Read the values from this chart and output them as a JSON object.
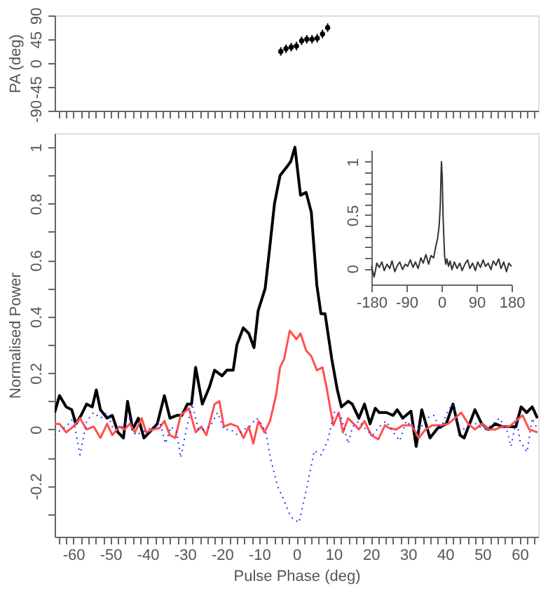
{
  "chart_data": [
    {
      "type": "scatter",
      "ylabel": "PA (deg)",
      "marker": "circle",
      "color": "#000000",
      "tick_labels": "y",
      "x": [
        -4.2,
        -2.8,
        -1.4,
        0,
        1.4,
        2.8,
        4.2,
        5.6,
        7.0,
        8.4
      ],
      "values": [
        22,
        27,
        30,
        32,
        42,
        45,
        45,
        47,
        55,
        67
      ],
      "errors": [
        8,
        8,
        8,
        8,
        8,
        8,
        8,
        8,
        8,
        8
      ],
      "xlim": [
        -65,
        65
      ],
      "ylim": [
        -90,
        90
      ],
      "yticks": [
        -90,
        -45,
        0,
        45,
        90
      ],
      "xticks": [
        {
          "value": -64,
          "label": null
        },
        {
          "value": -62,
          "label": null
        },
        -60,
        {
          "value": -58,
          "label": null
        },
        {
          "value": -56,
          "label": null
        },
        {
          "value": -54,
          "label": null
        },
        {
          "value": -52,
          "label": null
        },
        -50,
        {
          "value": -48,
          "label": null
        },
        {
          "value": -46,
          "label": null
        },
        {
          "value": -44,
          "label": null
        },
        {
          "value": -42,
          "label": null
        },
        -40,
        {
          "value": -38,
          "label": null
        },
        {
          "value": -36,
          "label": null
        },
        {
          "value": -34,
          "label": null
        },
        {
          "value": -32,
          "label": null
        },
        -30,
        {
          "value": -28,
          "label": null
        },
        {
          "value": -26,
          "label": null
        },
        {
          "value": -24,
          "label": null
        },
        {
          "value": -22,
          "label": null
        },
        -20,
        {
          "value": -18,
          "label": null
        },
        {
          "value": -16,
          "label": null
        },
        {
          "value": -14,
          "label": null
        },
        {
          "value": -12,
          "label": null
        },
        -10,
        {
          "value": -8,
          "label": null
        },
        {
          "value": -6,
          "label": null
        },
        {
          "value": -4,
          "label": null
        },
        {
          "value": -2,
          "label": null
        },
        0,
        {
          "value": 2,
          "label": null
        },
        {
          "value": 4,
          "label": null
        },
        {
          "value": 6,
          "label": null
        },
        {
          "value": 8,
          "label": null
        },
        10,
        {
          "value": 12,
          "label": null
        },
        {
          "value": 14,
          "label": null
        },
        {
          "value": 16,
          "label": null
        },
        {
          "value": 18,
          "label": null
        },
        20,
        {
          "value": 22,
          "label": null
        },
        {
          "value": 24,
          "label": null
        },
        {
          "value": 26,
          "label": null
        },
        {
          "value": 28,
          "label": null
        },
        30,
        {
          "value": 32,
          "label": null
        },
        {
          "value": 34,
          "label": null
        },
        {
          "value": 36,
          "label": null
        },
        {
          "value": 38,
          "label": null
        },
        40,
        {
          "value": 42,
          "label": null
        },
        {
          "value": 44,
          "label": null
        },
        {
          "value": 46,
          "label": null
        },
        {
          "value": 48,
          "label": null
        },
        50,
        {
          "value": 52,
          "label": null
        },
        {
          "value": 54,
          "label": null
        },
        {
          "value": 56,
          "label": null
        },
        {
          "value": 58,
          "label": null
        },
        60,
        {
          "value": 62,
          "label": null
        },
        {
          "value": 64,
          "label": null
        }
      ]
    },
    {
      "type": "line",
      "xlabel": "Pulse Phase (deg)",
      "ylabel": "Normalised Power",
      "xlim": [
        -65,
        65
      ],
      "ylim": [
        -0.38,
        1.05
      ],
      "yticks": [
        {
          "value": -0.3,
          "label": null
        },
        -0.2,
        {
          "value": -0.1,
          "label": null
        },
        0,
        {
          "value": 0.1,
          "label": null
        },
        0.2,
        {
          "value": 0.3,
          "label": null
        },
        0.4,
        {
          "value": 0.5,
          "label": null
        },
        0.6,
        {
          "value": 0.7,
          "label": null
        },
        0.8,
        {
          "value": 0.9,
          "label": null
        },
        1
      ],
      "xticks": [
        {
          "value": -64,
          "label": null
        },
        {
          "value": -62,
          "label": null
        },
        -60,
        {
          "value": -58,
          "label": null
        },
        {
          "value": -56,
          "label": null
        },
        {
          "value": -54,
          "label": null
        },
        {
          "value": -52,
          "label": null
        },
        -50,
        {
          "value": -48,
          "label": null
        },
        {
          "value": -46,
          "label": null
        },
        {
          "value": -44,
          "label": null
        },
        {
          "value": -42,
          "label": null
        },
        -40,
        {
          "value": -38,
          "label": null
        },
        {
          "value": -36,
          "label": null
        },
        {
          "value": -34,
          "label": null
        },
        {
          "value": -32,
          "label": null
        },
        -30,
        {
          "value": -28,
          "label": null
        },
        {
          "value": -26,
          "label": null
        },
        {
          "value": -24,
          "label": null
        },
        {
          "value": -22,
          "label": null
        },
        -20,
        {
          "value": -18,
          "label": null
        },
        {
          "value": -16,
          "label": null
        },
        {
          "value": -14,
          "label": null
        },
        {
          "value": -12,
          "label": null
        },
        -10,
        {
          "value": -8,
          "label": null
        },
        {
          "value": -6,
          "label": null
        },
        {
          "value": -4,
          "label": null
        },
        {
          "value": -2,
          "label": null
        },
        0,
        {
          "value": 2,
          "label": null
        },
        {
          "value": 4,
          "label": null
        },
        {
          "value": 6,
          "label": null
        },
        {
          "value": 8,
          "label": null
        },
        10,
        {
          "value": 12,
          "label": null
        },
        {
          "value": 14,
          "label": null
        },
        {
          "value": 16,
          "label": null
        },
        {
          "value": 18,
          "label": null
        },
        20,
        {
          "value": 22,
          "label": null
        },
        {
          "value": 24,
          "label": null
        },
        {
          "value": 26,
          "label": null
        },
        {
          "value": 28,
          "label": null
        },
        30,
        {
          "value": 32,
          "label": null
        },
        {
          "value": 34,
          "label": null
        },
        {
          "value": 36,
          "label": null
        },
        {
          "value": 38,
          "label": null
        },
        40,
        {
          "value": 42,
          "label": null
        },
        {
          "value": 44,
          "label": null
        },
        {
          "value": 46,
          "label": null
        },
        {
          "value": 48,
          "label": null
        },
        50,
        {
          "value": 52,
          "label": null
        },
        {
          "value": 54,
          "label": null
        },
        {
          "value": 56,
          "label": null
        },
        {
          "value": 58,
          "label": null
        },
        60,
        {
          "value": 62,
          "label": null
        },
        {
          "value": 64,
          "label": null
        }
      ],
      "series": [
        {
          "color": "#000000",
          "line_style": "solid",
          "x": [
            -65,
            -63.7,
            -61.9,
            -60.4,
            -59.3,
            -57.9,
            -56.4,
            -54.9,
            -53.8,
            -52.7,
            -50.9,
            -49.5,
            -48,
            -46.5,
            -45.4,
            -44,
            -42.5,
            -41,
            -38.8,
            -37.4,
            -35.5,
            -34,
            -32.2,
            -30.8,
            -29.3,
            -28.2,
            -27.1,
            -25.3,
            -23.4,
            -22,
            -20,
            -18.7,
            -17,
            -16,
            -14.3,
            -12.8,
            -11.4,
            -10.3,
            -8.4,
            -7.3,
            -5.9,
            -4.4,
            -2.6,
            -1.5,
            -0.4,
            1.1,
            2.6,
            4,
            5.5,
            6.6,
            7.7,
            9.5,
            11,
            12.1,
            13.9,
            15,
            16.8,
            18.3,
            19.8,
            21.2,
            22.3,
            24.2,
            26,
            27.1,
            28.6,
            30.8,
            32.2,
            33.7,
            35.9,
            38,
            40.3,
            42.1,
            44,
            45.1,
            48,
            49.8,
            51.6,
            53.5,
            55.3,
            57.9,
            59,
            60.4,
            61.9,
            63.4,
            64.8
          ],
          "values": [
            0.06,
            0.12,
            0.08,
            0.07,
            0.02,
            0.05,
            0.09,
            0.08,
            0.14,
            0.07,
            0.04,
            0.05,
            -0.01,
            -0.03,
            0.1,
            0.0,
            0.04,
            -0.03,
            0.0,
            0.02,
            0.12,
            0.04,
            0.05,
            0.05,
            0.09,
            0.09,
            0.22,
            0.09,
            0.15,
            0.21,
            0.19,
            0.21,
            0.21,
            0.3,
            0.36,
            0.34,
            0.29,
            0.42,
            0.5,
            0.63,
            0.8,
            0.9,
            0.93,
            0.95,
            1.0,
            0.83,
            0.84,
            0.77,
            0.51,
            0.41,
            0.41,
            0.25,
            0.14,
            0.08,
            0.1,
            0.09,
            0.04,
            0.09,
            0.02,
            0.075,
            0.06,
            0.06,
            0.05,
            0.07,
            0.04,
            0.065,
            -0.06,
            0.07,
            -0.03,
            0.005,
            0.02,
            0.09,
            -0.02,
            -0.03,
            0.07,
            0.02,
            0.0,
            0.02,
            0.01,
            0.01,
            0.01,
            0.08,
            0.06,
            0.08,
            0.04
          ]
        },
        {
          "color": "#ff5050",
          "line_style": "solid",
          "x": [
            -65,
            -63.7,
            -61.9,
            -60,
            -58.2,
            -56.4,
            -54.5,
            -52.7,
            -50.9,
            -49.5,
            -47.6,
            -46.2,
            -44.8,
            -43.4,
            -41.6,
            -40.4,
            -38.6,
            -36.8,
            -35.5,
            -34,
            -32.6,
            -31.1,
            -28.9,
            -27.1,
            -25.6,
            -24.2,
            -22,
            -20.7,
            -19.5,
            -17.7,
            -15.8,
            -14.2,
            -12.8,
            -11.6,
            -10.2,
            -8.6,
            -7.1,
            -5.5,
            -4.4,
            -3.3,
            -1.8,
            0,
            1.1,
            2.6,
            4,
            5.5,
            7,
            8.1,
            9.9,
            11.4,
            12.5,
            13.9,
            15.8,
            16.8,
            18.3,
            20.1,
            22,
            23.8,
            25,
            26.8,
            28.6,
            31,
            32.9,
            34.7,
            36.5,
            39,
            40.8,
            42.6,
            44.3,
            46.2,
            48,
            49.8,
            51.6,
            53.5,
            55.3,
            57.2,
            59,
            60.8,
            62.6,
            64.8
          ],
          "values": [
            0.02,
            0.02,
            -0.01,
            0.01,
            0.04,
            0.0,
            0.01,
            -0.03,
            0.02,
            -0.02,
            0.01,
            0.0,
            0.02,
            -0.01,
            0.04,
            -0.01,
            0.0,
            0.005,
            0.03,
            -0.02,
            -0.03,
            0.05,
            0.075,
            -0.01,
            0.01,
            -0.02,
            0.09,
            0.1,
            0.01,
            0.02,
            0.01,
            -0.03,
            0.01,
            -0.05,
            0.03,
            -0.01,
            0.03,
            0.12,
            0.22,
            0.25,
            0.35,
            0.32,
            0.34,
            0.28,
            0.26,
            0.21,
            0.22,
            0.15,
            0.015,
            0.06,
            -0.01,
            0.04,
            0.015,
            0.0,
            0.03,
            -0.02,
            -0.035,
            0.015,
            0.005,
            0.0,
            0.015,
            0.015,
            -0.03,
            0.0,
            0.015,
            0.015,
            0.02,
            0.04,
            0.06,
            0.02,
            0.0,
            0.02,
            0.0,
            0.0,
            0.01,
            0.01,
            0.03,
            0.05,
            0.0,
            -0.01
          ]
        },
        {
          "color": "#3030ff",
          "line_style": "dotted",
          "x": [
            -65,
            -63.3,
            -61.9,
            -60,
            -58.2,
            -56.4,
            -54.5,
            -52.7,
            -50.9,
            -49.5,
            -47.6,
            -46.2,
            -44.8,
            -43.3,
            -41.6,
            -39.9,
            -38.4,
            -36.8,
            -35.2,
            -33.7,
            -32.2,
            -31.1,
            -29.6,
            -28,
            -26.4,
            -24.9,
            -23.2,
            -21.2,
            -19.5,
            -17.7,
            -15.8,
            -14.2,
            -12.6,
            -10.8,
            -9.9,
            -8.2,
            -7,
            -5.1,
            -3.7,
            -1.5,
            0.7,
            2.9,
            4.8,
            6.6,
            8.4,
            10.3,
            12.1,
            13.9,
            15.1,
            16.8,
            18.7,
            20.5,
            22.3,
            24.1,
            26,
            27.8,
            29.5,
            31,
            33.2,
            35,
            36.9,
            38.7,
            40.5,
            42,
            43.6,
            45.4,
            47.3,
            49.1,
            50.9,
            52.8,
            54.6,
            56.5,
            57.7,
            59.2,
            60.1,
            62,
            63.4,
            64.8
          ],
          "values": [
            -0.02,
            0.0,
            0.01,
            0.04,
            -0.09,
            0.03,
            0.06,
            0.04,
            0.06,
            0.01,
            0.0,
            0.02,
            0.04,
            -0.02,
            -0.01,
            0.0,
            0.01,
            0.03,
            -0.05,
            0.01,
            -0.01,
            -0.1,
            0.0,
            0.09,
            0.0,
            0.0,
            0.01,
            0.06,
            0.0,
            0.0,
            -0.02,
            0.0,
            0.01,
            0.04,
            0.03,
            -0.01,
            -0.1,
            -0.2,
            -0.24,
            -0.31,
            -0.33,
            -0.2,
            -0.075,
            -0.09,
            -0.04,
            0.065,
            0.04,
            -0.05,
            0.01,
            0.03,
            0.0,
            -0.02,
            0.01,
            0.03,
            -0.01,
            -0.04,
            0.03,
            0.01,
            0.0,
            0.04,
            0.05,
            0.0,
            0.06,
            0.09,
            0.01,
            0.0,
            0.03,
            0.01,
            0.0,
            0.02,
            0.04,
            0.0,
            -0.06,
            0.04,
            -0.04,
            -0.08,
            0.04,
            0.0
          ]
        }
      ]
    },
    {
      "type": "line",
      "color": "#333333",
      "xlim": [
        -180,
        180
      ],
      "ylim": [
        -0.15,
        1.11
      ],
      "xticks": [
        -180,
        -90,
        0,
        90,
        180
      ],
      "yticks": [
        0,
        {
          "value": 0.1,
          "label": null
        },
        {
          "value": 0.2,
          "label": null
        },
        {
          "value": 0.3,
          "label": null
        },
        {
          "value": 0.4,
          "label": null
        },
        0.5,
        {
          "value": 0.6,
          "label": null
        },
        {
          "value": 0.7,
          "label": null
        },
        {
          "value": 0.8,
          "label": null
        },
        {
          "value": 0.9,
          "label": null
        },
        1
      ],
      "x": [
        -180,
        -173,
        -166,
        -160,
        -153,
        -147,
        -140,
        -133,
        -127,
        -120,
        -113,
        -107,
        -100,
        -93,
        -87,
        -80,
        -73,
        -67,
        -60,
        -53,
        -47,
        -40,
        -33,
        -27,
        -20,
        -15,
        -10,
        -6,
        -3,
        -1,
        0,
        2,
        4,
        6,
        8,
        11,
        14,
        18,
        22,
        27,
        33,
        40,
        47,
        53,
        60,
        67,
        73,
        80,
        87,
        93,
        100,
        107,
        113,
        120,
        127,
        133,
        140,
        147,
        153,
        160,
        167,
        173,
        180
      ],
      "values": [
        0.02,
        -0.08,
        0.05,
        0.01,
        0.06,
        -0.02,
        0.04,
        0.0,
        0.07,
        -0.03,
        0.03,
        0.06,
        -0.01,
        0.04,
        0.02,
        0.08,
        0.01,
        0.06,
        0.0,
        0.1,
        0.05,
        0.13,
        0.04,
        0.12,
        0.1,
        0.2,
        0.28,
        0.4,
        0.6,
        0.9,
        1.0,
        0.85,
        0.5,
        0.3,
        0.12,
        0.04,
        0.09,
        0.02,
        0.07,
        -0.01,
        0.06,
        0.0,
        0.05,
        -0.02,
        0.04,
        0.08,
        0.0,
        0.05,
        -0.02,
        0.06,
        0.01,
        0.08,
        0.02,
        0.05,
        -0.01,
        0.07,
        0.03,
        0.09,
        0.0,
        0.06,
        -0.03,
        0.05,
        0.02
      ]
    }
  ]
}
